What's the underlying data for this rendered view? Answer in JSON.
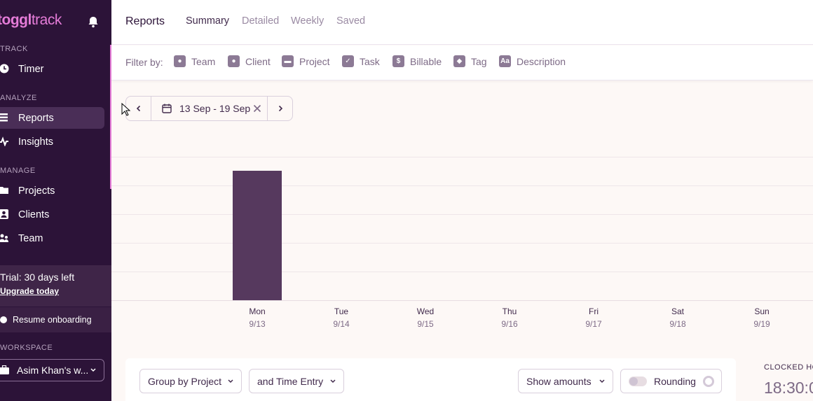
{
  "sidebar": {
    "logo_main": "toggl",
    "logo_sub": "track",
    "sections": {
      "track": "TRACK",
      "analyze": "ANALYZE",
      "manage": "MANAGE",
      "workspace": "WORKSPACE"
    },
    "items": [
      {
        "label": "Timer",
        "icon": "clock-icon"
      },
      {
        "label": "Reports",
        "icon": "reports-icon"
      },
      {
        "label": "Insights",
        "icon": "insights-icon"
      },
      {
        "label": "Projects",
        "icon": "folder-icon"
      },
      {
        "label": "Clients",
        "icon": "client-icon"
      },
      {
        "label": "Team",
        "icon": "team-icon"
      }
    ],
    "trial_text": "Trial: 30 days left",
    "upgrade_label": "Upgrade today",
    "onboarding_label": "Resume onboarding",
    "workspace_name": "Asim Khan's w..."
  },
  "header": {
    "title": "Reports",
    "tabs": [
      "Summary",
      "Detailed",
      "Weekly",
      "Saved"
    ]
  },
  "filters": {
    "label": "Filter by:",
    "items": [
      {
        "label": "Team",
        "icon": "team-icon"
      },
      {
        "label": "Client",
        "icon": "client-icon"
      },
      {
        "label": "Project",
        "icon": "folder-icon"
      },
      {
        "label": "Task",
        "icon": "task-icon"
      },
      {
        "label": "Billable",
        "icon": "dollar-icon"
      },
      {
        "label": "Tag",
        "icon": "tag-icon"
      },
      {
        "label": "Description",
        "icon": "description-icon"
      }
    ]
  },
  "datepicker": {
    "range": "13 Sep - 19 Sep"
  },
  "chart_data": {
    "type": "bar",
    "categories": [
      "Mon",
      "Tue",
      "Wed",
      "Thu",
      "Fri",
      "Sat",
      "Sun"
    ],
    "dates": [
      "9/13",
      "9/14",
      "9/15",
      "9/16",
      "9/17",
      "9/18",
      "9/19"
    ],
    "values": [
      18.5,
      0,
      0,
      0,
      0,
      0,
      0
    ],
    "ylim": [
      0,
      20
    ],
    "grid": true,
    "colors": {
      "bar": "#56395e"
    }
  },
  "toolbar": {
    "group_by": "Group by Project",
    "sub_group": "and Time Entry",
    "amounts": "Show amounts",
    "rounding": "Rounding",
    "clocked_label": "CLOCKED HO",
    "clocked_value": "18:30:0"
  },
  "colors": {
    "sidebar": "#2c1338",
    "accent": "#e57cd8",
    "bar": "#56395e"
  }
}
